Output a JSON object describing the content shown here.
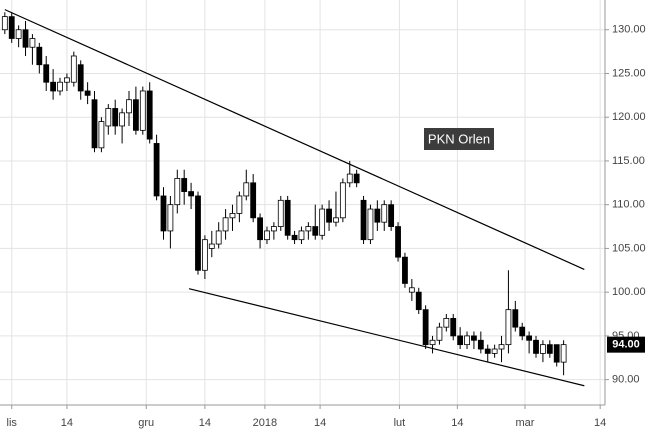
{
  "chart_data": {
    "type": "candlestick",
    "title": "PKN Orlen",
    "x": [
      0,
      1,
      2,
      3,
      4,
      5,
      6,
      7,
      8,
      9,
      10,
      11,
      12,
      13,
      14,
      15,
      16,
      17,
      18,
      19,
      20,
      21,
      22,
      23,
      24,
      25,
      26,
      27,
      28,
      29,
      30,
      31,
      32,
      33,
      34,
      35,
      36,
      37,
      38,
      39,
      40,
      41,
      42,
      43,
      44,
      45,
      46,
      47,
      48,
      49,
      50,
      51,
      52,
      53,
      54,
      55,
      56,
      57,
      58,
      59,
      60,
      61,
      62,
      63,
      64,
      65,
      66,
      67,
      68,
      69,
      70,
      71,
      72,
      73,
      74,
      75,
      76,
      77,
      78,
      79,
      80,
      81
    ],
    "open": [
      130,
      131.5,
      129,
      130,
      128,
      128,
      126,
      124,
      123,
      124,
      124,
      126,
      123,
      122,
      116.5,
      119,
      121,
      119,
      120.5,
      122,
      118.5,
      123,
      117,
      111,
      107,
      110,
      113,
      111.5,
      111,
      102.5,
      105,
      105.5,
      107,
      108.5,
      109,
      111,
      112.5,
      108.5,
      106,
      107,
      107.5,
      110.5,
      106.5,
      106,
      107,
      107.5,
      106.5,
      109.5,
      108,
      108.5,
      112.5,
      113.5,
      110.5,
      106,
      109.5,
      108,
      110,
      107.5,
      104,
      100,
      100,
      98,
      94,
      94.5,
      96,
      97,
      95,
      94,
      95,
      94.5,
      93.5,
      93,
      93.5,
      94,
      98,
      96,
      95,
      94.5,
      93,
      94,
      94,
      92
    ],
    "high": [
      132,
      132,
      130.5,
      131,
      129.5,
      128.5,
      127,
      125.5,
      124.5,
      125,
      127.5,
      126.5,
      124,
      123,
      120,
      121.5,
      122,
      121,
      123,
      123.5,
      123.5,
      124,
      118,
      112,
      111,
      114,
      114,
      112.5,
      111.5,
      106.5,
      107,
      108,
      109.5,
      110,
      111.5,
      114,
      113.5,
      109,
      107.5,
      108,
      111,
      111,
      107,
      107.5,
      108,
      110,
      110,
      110.5,
      111.5,
      113,
      115,
      114,
      111,
      110,
      110.5,
      110.5,
      110.5,
      108,
      104.5,
      101.5,
      100.5,
      98.5,
      95,
      96.5,
      97.5,
      97.5,
      96,
      95.5,
      95.5,
      95.5,
      94,
      94,
      95,
      102.5,
      99,
      96.5,
      95.5,
      95,
      94.5,
      94.5,
      94,
      94.5
    ],
    "low": [
      129.5,
      128.5,
      128,
      127,
      126,
      125,
      123,
      122,
      122.5,
      123,
      123.5,
      122,
      121.5,
      116,
      116,
      118,
      118,
      117,
      119,
      118,
      118,
      117,
      110.5,
      106,
      105,
      109,
      110,
      109.5,
      102,
      101.5,
      104,
      105,
      106,
      107,
      108,
      110.5,
      108,
      105,
      105.5,
      106,
      107,
      106,
      105.5,
      105.5,
      106,
      106,
      106,
      107,
      107.5,
      108,
      112,
      112,
      105.5,
      105.5,
      107,
      107,
      107,
      103.5,
      100.5,
      99,
      97.5,
      93.5,
      93,
      94,
      95.5,
      94.5,
      93.5,
      93.5,
      93.5,
      93,
      92,
      92.5,
      92,
      93,
      95.5,
      94.5,
      93,
      92.5,
      92,
      92.5,
      91.5,
      90.5
    ],
    "close": [
      131.5,
      129,
      130,
      128,
      129,
      126,
      124,
      123,
      124,
      124.5,
      127,
      123,
      122.5,
      116.5,
      119.5,
      121,
      119,
      120.5,
      122,
      118.5,
      123,
      117.5,
      111,
      107,
      110,
      113,
      111.5,
      111,
      102.5,
      106,
      105.5,
      107,
      108.5,
      109,
      111,
      112.5,
      108.5,
      106,
      107,
      107.5,
      110.5,
      106.5,
      106,
      107,
      107.5,
      106.5,
      109.5,
      108,
      108.5,
      112.5,
      113.5,
      112.5,
      106,
      109.5,
      108,
      110,
      107.5,
      104,
      101,
      100.5,
      98,
      94,
      94.5,
      96,
      97,
      95,
      94,
      95,
      94.5,
      93.5,
      93,
      93.5,
      94,
      98,
      96,
      95,
      94.5,
      93,
      94,
      93,
      92,
      94
    ],
    "xlim": [
      -0.7,
      87
    ],
    "xticks": [
      {
        "value": 1,
        "label": "lis"
      },
      {
        "value": 9,
        "label": "14"
      },
      {
        "value": 20.5,
        "label": "gru"
      },
      {
        "value": 29,
        "label": "14"
      },
      {
        "value": 37.7,
        "label": "2018"
      },
      {
        "value": 45.7,
        "label": "14"
      },
      {
        "value": 57.2,
        "label": "lut"
      },
      {
        "value": 65.6,
        "label": "14"
      },
      {
        "value": 75.4,
        "label": "mar"
      },
      {
        "value": 86.3,
        "label": "14"
      }
    ],
    "ylim": [
      87.1,
      133.4
    ],
    "yticks": [
      {
        "value": 90,
        "label": "90.00"
      },
      {
        "value": 95,
        "label": "95.00"
      },
      {
        "value": 100,
        "label": "100.00"
      },
      {
        "value": 105,
        "label": "105.00"
      },
      {
        "value": 110,
        "label": "110.00"
      },
      {
        "value": 115,
        "label": "115.00"
      },
      {
        "value": 120,
        "label": "120.00"
      },
      {
        "value": 125,
        "label": "125.00"
      },
      {
        "value": 130,
        "label": "130.00"
      }
    ],
    "grid": true,
    "price_marker": {
      "value": 94,
      "label": "94.00"
    },
    "trendlines": [
      {
        "x": [
          0,
          84
        ],
        "y": [
          132.3,
          102.6
        ]
      },
      {
        "x": [
          26.7,
          84
        ],
        "y": [
          100.4,
          89.3
        ]
      }
    ]
  }
}
